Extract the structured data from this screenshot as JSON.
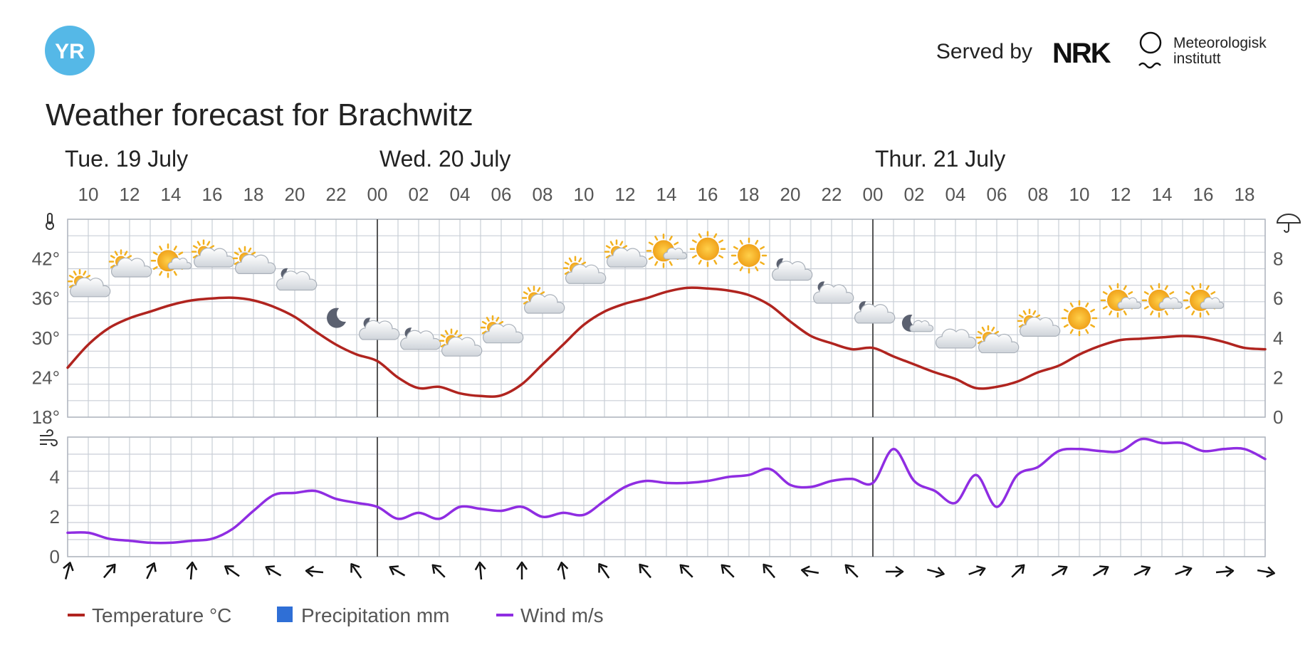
{
  "header": {
    "logo_text": "YR",
    "served_by": "Served by",
    "partner1": "NRK",
    "partner2_line1": "Meteorologisk",
    "partner2_line2": "institutt"
  },
  "colors": {
    "temperature": "#b0241f",
    "wind": "#8f2de2",
    "precipitation": "#2f6fd6",
    "grid": "#c9ced6",
    "frame": "#aeb4bd",
    "day_line": "#555555",
    "logo": "#55b8e7"
  },
  "chart_data": {
    "type": "line",
    "title": "Weather forecast for Brachwitz",
    "days": [
      {
        "label": "Tue. 19 July",
        "start_hour": 9
      },
      {
        "label": "Wed. 20 July",
        "start_hour": 24
      },
      {
        "label": "Thur. 21 July",
        "start_hour": 48
      }
    ],
    "x_hour_ticks": [
      "10",
      "12",
      "14",
      "16",
      "18",
      "20",
      "22",
      "00",
      "02",
      "04",
      "06",
      "08",
      "10",
      "12",
      "14",
      "16",
      "18",
      "20",
      "22",
      "00",
      "02",
      "04",
      "06",
      "08",
      "10",
      "12",
      "14",
      "16",
      "18"
    ],
    "x_range_hours": [
      9,
      67
    ],
    "temperature_panel": {
      "ylabel_icon": "thermometer-icon",
      "y_left_ticks": [
        "18°",
        "24°",
        "30°",
        "36°",
        "42°"
      ],
      "ylim": [
        18,
        48
      ],
      "y_right_ticks": [
        "0",
        "2",
        "4",
        "6",
        "8"
      ],
      "y_right_icon": "umbrella-icon",
      "y_right_lim": [
        0,
        10
      ],
      "series": [
        {
          "name": "Temperature °C",
          "hours": [
            9,
            10,
            11,
            12,
            13,
            14,
            15,
            16,
            17,
            18,
            19,
            20,
            21,
            22,
            23,
            24,
            25,
            26,
            27,
            28,
            29,
            30,
            31,
            32,
            33,
            34,
            35,
            36,
            37,
            38,
            39,
            40,
            41,
            42,
            43,
            44,
            45,
            46,
            47,
            48,
            49,
            50,
            51,
            52,
            53,
            54,
            55,
            56,
            57,
            58,
            59,
            60,
            61,
            62,
            63,
            64,
            65,
            66,
            67
          ],
          "values": [
            25.5,
            29,
            31.5,
            33,
            34,
            35,
            35.7,
            36,
            36.1,
            35.7,
            34.7,
            33.2,
            31,
            29,
            27.5,
            26.5,
            24,
            22.4,
            22.6,
            21.6,
            21.2,
            21.3,
            23,
            26,
            29,
            32,
            34,
            35.2,
            36,
            37,
            37.6,
            37.5,
            37.2,
            36.5,
            35,
            32.5,
            30.3,
            29.2,
            28.3,
            28.5,
            27.2,
            26,
            24.8,
            23.8,
            22.4,
            22.6,
            23.4,
            24.8,
            25.8,
            27.5,
            28.8,
            29.7,
            29.9,
            30.1,
            30.3,
            30.1,
            29.4,
            28.5,
            28.3
          ]
        }
      ],
      "precipitation_values": []
    },
    "weather_symbols": [
      {
        "hour": 10,
        "symbol": "partly-cloudy-day-icon",
        "temp": 37.5
      },
      {
        "hour": 12,
        "symbol": "partly-cloudy-day-icon",
        "temp": 40.5
      },
      {
        "hour": 14,
        "symbol": "fair-day-icon",
        "temp": 41.5
      },
      {
        "hour": 16,
        "symbol": "partly-cloudy-day-icon",
        "temp": 42
      },
      {
        "hour": 18,
        "symbol": "partly-cloudy-day-icon",
        "temp": 41
      },
      {
        "hour": 20,
        "symbol": "partly-cloudy-night-icon",
        "temp": 38.5
      },
      {
        "hour": 22,
        "symbol": "clear-night-icon",
        "temp": 33
      },
      {
        "hour": 24,
        "symbol": "partly-cloudy-night-icon",
        "temp": 31
      },
      {
        "hour": 26,
        "symbol": "partly-cloudy-night-icon",
        "temp": 29.5
      },
      {
        "hour": 28,
        "symbol": "partly-cloudy-day-icon",
        "temp": 28.5
      },
      {
        "hour": 30,
        "symbol": "partly-cloudy-day-icon",
        "temp": 30.5
      },
      {
        "hour": 32,
        "symbol": "partly-cloudy-day-icon",
        "temp": 35
      },
      {
        "hour": 34,
        "symbol": "partly-cloudy-day-icon",
        "temp": 39.5
      },
      {
        "hour": 36,
        "symbol": "partly-cloudy-day-icon",
        "temp": 42
      },
      {
        "hour": 38,
        "symbol": "fair-day-icon",
        "temp": 43
      },
      {
        "hour": 40,
        "symbol": "clear-day-icon",
        "temp": 43.5
      },
      {
        "hour": 42,
        "symbol": "clear-day-icon",
        "temp": 42.5
      },
      {
        "hour": 44,
        "symbol": "partly-cloudy-night-icon",
        "temp": 40
      },
      {
        "hour": 46,
        "symbol": "partly-cloudy-night-icon",
        "temp": 36.5
      },
      {
        "hour": 48,
        "symbol": "partly-cloudy-night-icon",
        "temp": 33.5
      },
      {
        "hour": 50,
        "symbol": "fair-night-icon",
        "temp": 32
      },
      {
        "hour": 52,
        "symbol": "cloudy-icon",
        "temp": 29.5
      },
      {
        "hour": 54,
        "symbol": "partly-cloudy-day-icon",
        "temp": 29
      },
      {
        "hour": 56,
        "symbol": "partly-cloudy-day-icon",
        "temp": 31.5
      },
      {
        "hour": 58,
        "symbol": "clear-day-icon",
        "temp": 33
      },
      {
        "hour": 60,
        "symbol": "fair-day-icon",
        "temp": 35.5
      },
      {
        "hour": 62,
        "symbol": "fair-day-icon",
        "temp": 35.5
      },
      {
        "hour": 64,
        "symbol": "fair-day-icon",
        "temp": 35.5
      }
    ],
    "wind_panel": {
      "ylabel_icon": "wind-icon",
      "y_ticks": [
        "0",
        "2",
        "4"
      ],
      "ylim": [
        0,
        6
      ],
      "series": [
        {
          "name": "Wind m/s",
          "hours": [
            9,
            10,
            11,
            12,
            13,
            14,
            15,
            16,
            17,
            18,
            19,
            20,
            21,
            22,
            23,
            24,
            25,
            26,
            27,
            28,
            29,
            30,
            31,
            32,
            33,
            34,
            35,
            36,
            37,
            38,
            39,
            40,
            41,
            42,
            43,
            44,
            45,
            46,
            47,
            48,
            49,
            50,
            51,
            52,
            53,
            54,
            55,
            56,
            57,
            58,
            59,
            60,
            61,
            62,
            63,
            64,
            65,
            66,
            67
          ],
          "values": [
            1.2,
            1.2,
            0.9,
            0.8,
            0.7,
            0.7,
            0.8,
            0.9,
            1.4,
            2.3,
            3.1,
            3.2,
            3.3,
            2.9,
            2.7,
            2.5,
            1.9,
            2.2,
            1.9,
            2.5,
            2.4,
            2.3,
            2.5,
            2,
            2.2,
            2.1,
            2.8,
            3.5,
            3.8,
            3.7,
            3.7,
            3.8,
            4,
            4.1,
            4.4,
            3.6,
            3.5,
            3.8,
            3.9,
            3.7,
            5.4,
            3.8,
            3.3,
            2.7,
            4.1,
            2.5,
            4.1,
            4.5,
            5.3,
            5.4,
            5.3,
            5.3,
            5.9,
            5.7,
            5.7,
            5.3,
            5.4,
            5.4,
            4.9
          ]
        }
      ]
    },
    "wind_directions": [
      {
        "hour": 9,
        "toward_deg": 15
      },
      {
        "hour": 11,
        "toward_deg": 40
      },
      {
        "hour": 13,
        "toward_deg": 25
      },
      {
        "hour": 15,
        "toward_deg": 5
      },
      {
        "hour": 17,
        "toward_deg": -55
      },
      {
        "hour": 19,
        "toward_deg": -60
      },
      {
        "hour": 21,
        "toward_deg": -85
      },
      {
        "hour": 23,
        "toward_deg": -35
      },
      {
        "hour": 25,
        "toward_deg": -60
      },
      {
        "hour": 27,
        "toward_deg": -45
      },
      {
        "hour": 29,
        "toward_deg": -5
      },
      {
        "hour": 31,
        "toward_deg": 0
      },
      {
        "hour": 33,
        "toward_deg": -10
      },
      {
        "hour": 35,
        "toward_deg": -35
      },
      {
        "hour": 37,
        "toward_deg": -40
      },
      {
        "hour": 39,
        "toward_deg": -45
      },
      {
        "hour": 41,
        "toward_deg": -45
      },
      {
        "hour": 43,
        "toward_deg": -40
      },
      {
        "hour": 45,
        "toward_deg": -80
      },
      {
        "hour": 47,
        "toward_deg": -45
      },
      {
        "hour": 49,
        "toward_deg": 90
      },
      {
        "hour": 51,
        "toward_deg": 105
      },
      {
        "hour": 53,
        "toward_deg": 70
      },
      {
        "hour": 55,
        "toward_deg": 45
      },
      {
        "hour": 57,
        "toward_deg": 60
      },
      {
        "hour": 59,
        "toward_deg": 60
      },
      {
        "hour": 61,
        "toward_deg": 65
      },
      {
        "hour": 63,
        "toward_deg": 70
      },
      {
        "hour": 65,
        "toward_deg": 85
      },
      {
        "hour": 67,
        "toward_deg": 100
      }
    ],
    "legend": [
      {
        "label": "Temperature °C",
        "marker": "line",
        "color_key": "temperature"
      },
      {
        "label": "Precipitation mm",
        "marker": "square",
        "color_key": "precipitation"
      },
      {
        "label": "Wind m/s",
        "marker": "line",
        "color_key": "wind"
      }
    ],
    "legend_position": "bottom-left",
    "grid": true
  }
}
